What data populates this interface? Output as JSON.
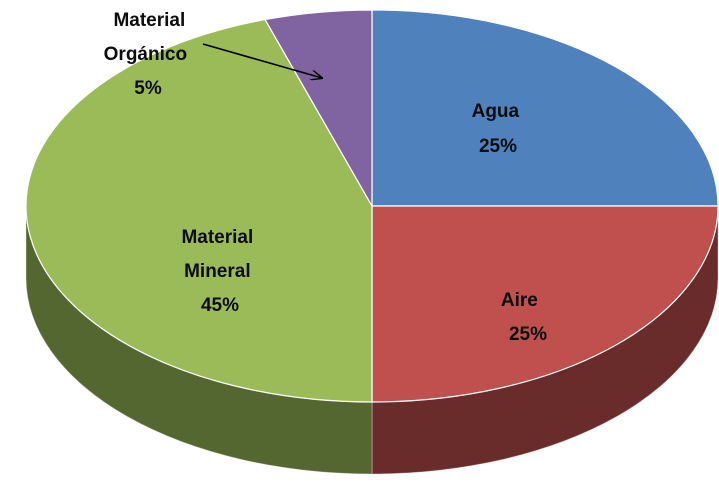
{
  "chart_data": {
    "type": "pie",
    "style": "3d",
    "slices": [
      {
        "label_lines": [
          "Agua"
        ],
        "value": 25,
        "value_label": "25%",
        "color": "#4f81bd"
      },
      {
        "label_lines": [
          "Aire"
        ],
        "value": 25,
        "value_label": "25%",
        "color": "#c0504d"
      },
      {
        "label_lines": [
          "Material",
          "Mineral"
        ],
        "value": 45,
        "value_label": "45%",
        "color": "#9bbb59"
      },
      {
        "label_lines": [
          "Material",
          "Orgánico"
        ],
        "value": 5,
        "value_label": "5%",
        "color": "#8064a2"
      }
    ],
    "legend": "none"
  }
}
